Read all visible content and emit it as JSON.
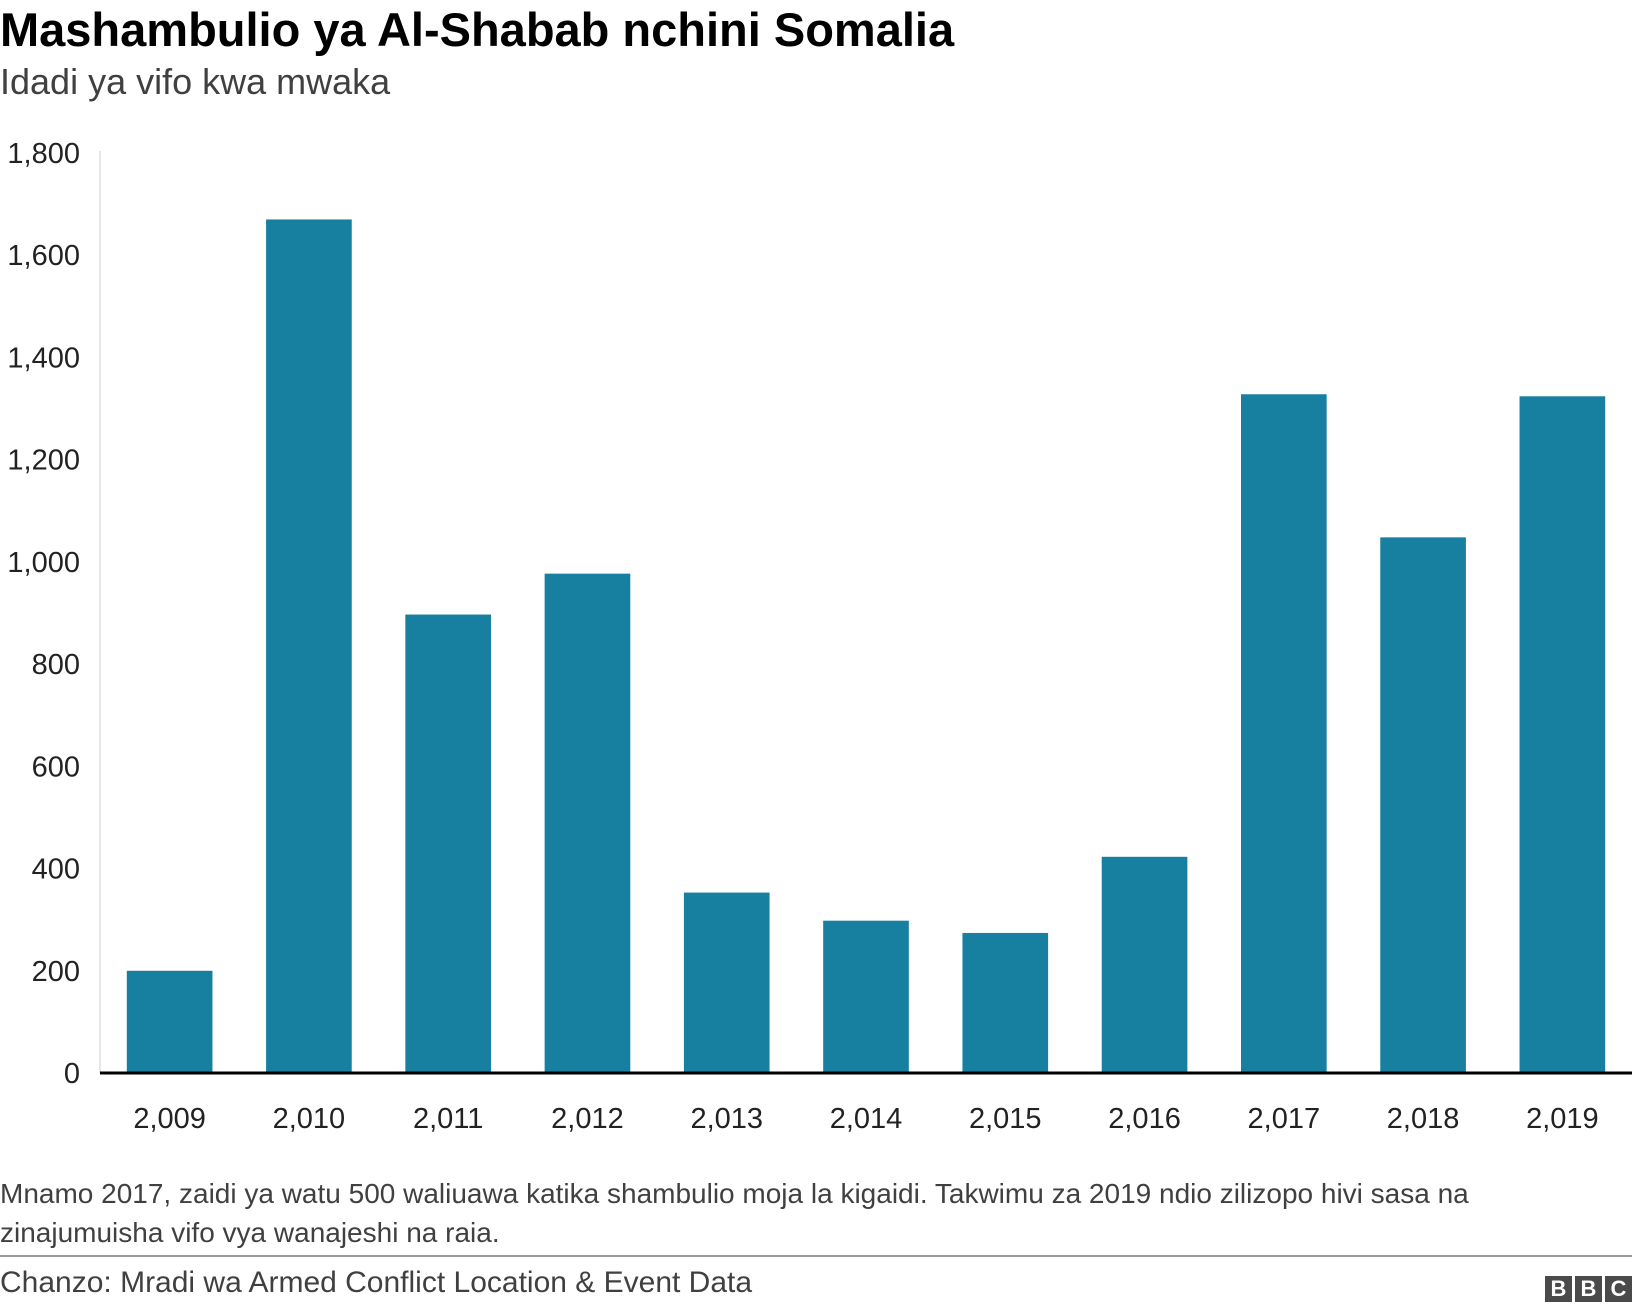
{
  "header": {
    "title": "Mashambulio ya Al-Shabab nchini Somalia",
    "subtitle": "Idadi ya vifo kwa mwaka"
  },
  "footer": {
    "note": "Mnamo 2017, zaidi ya watu 500 waliuawa katika shambulio moja la kigaidi. Takwimu za 2019 ndio zilizopo hivi sasa na zinajumuisha vifo vya wanajeshi na raia.",
    "source": "Chanzo: Mradi wa Armed Conflict Location & Event Data",
    "logo_letters": [
      "B",
      "B",
      "C"
    ]
  },
  "colors": {
    "bar": "#1780a1",
    "axis": "#000000",
    "gridline": "#cccccc"
  },
  "chart_data": {
    "type": "bar",
    "title": "Mashambulio ya Al-Shabab nchini Somalia",
    "subtitle": "Idadi ya vifo kwa mwaka",
    "xlabel": "",
    "ylabel": "",
    "categories": [
      "2,009",
      "2,010",
      "2,011",
      "2,012",
      "2,013",
      "2,014",
      "2,015",
      "2,016",
      "2,017",
      "2,018",
      "2,019"
    ],
    "values": [
      200,
      1670,
      897,
      977,
      353,
      298,
      274,
      423,
      1328,
      1048,
      1324
    ],
    "ylim": [
      0,
      1800
    ],
    "yticks": [
      0,
      200,
      400,
      600,
      800,
      1000,
      1200,
      1400,
      1600,
      1800
    ],
    "ytick_labels": [
      "0",
      "200",
      "400",
      "600",
      "800",
      "1,000",
      "1,200",
      "1,400",
      "1,600",
      "1,800"
    ],
    "grid": false,
    "legend": "none"
  }
}
